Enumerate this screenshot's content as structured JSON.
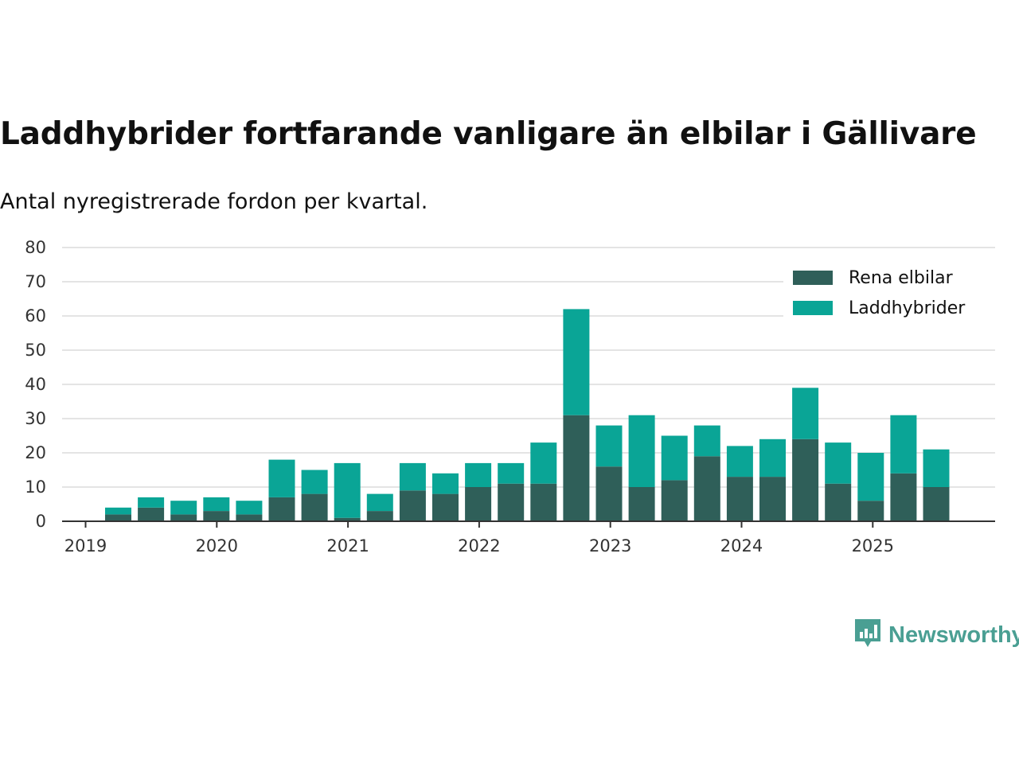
{
  "chart_data": {
    "type": "bar",
    "stacked": true,
    "title": "Laddhybrider fortfarande vanligare än elbilar i Gällivare",
    "subtitle": "Antal nyregistrerade fordon per kvartal.",
    "xlabel": "",
    "ylabel": "",
    "ylim": [
      0,
      80
    ],
    "yticks": [
      0,
      10,
      20,
      30,
      40,
      50,
      60,
      70,
      80
    ],
    "xtick_labels": [
      "2019",
      "2020",
      "2021",
      "2022",
      "2023",
      "2024",
      "2025"
    ],
    "categories": [
      "2019 Q2",
      "2019 Q3",
      "2019 Q4",
      "2020 Q1",
      "2020 Q2",
      "2020 Q3",
      "2020 Q4",
      "2021 Q1",
      "2021 Q2",
      "2021 Q3",
      "2021 Q4",
      "2022 Q1",
      "2022 Q2",
      "2022 Q3",
      "2022 Q4",
      "2023 Q1",
      "2023 Q2",
      "2023 Q3",
      "2023 Q4",
      "2024 Q1",
      "2024 Q2",
      "2024 Q3",
      "2024 Q4",
      "2025 Q1",
      "2025 Q2",
      "2025 Q3"
    ],
    "series": [
      {
        "name": "Rena elbilar",
        "color": "#2f5f59",
        "values": [
          2,
          4,
          2,
          3,
          2,
          7,
          8,
          1,
          3,
          9,
          8,
          10,
          11,
          11,
          31,
          16,
          10,
          12,
          19,
          13,
          13,
          24,
          11,
          6,
          14,
          10
        ]
      },
      {
        "name": "Laddhybrider",
        "color": "#0aa596",
        "values": [
          2,
          3,
          4,
          4,
          4,
          11,
          7,
          16,
          5,
          8,
          6,
          7,
          6,
          12,
          31,
          12,
          21,
          13,
          9,
          9,
          11,
          15,
          12,
          14,
          17,
          11
        ]
      }
    ],
    "legend_position": "top-right",
    "grid": true
  },
  "brand": {
    "name": "Newsworthy",
    "icon": "newsworthy-logo-icon"
  }
}
